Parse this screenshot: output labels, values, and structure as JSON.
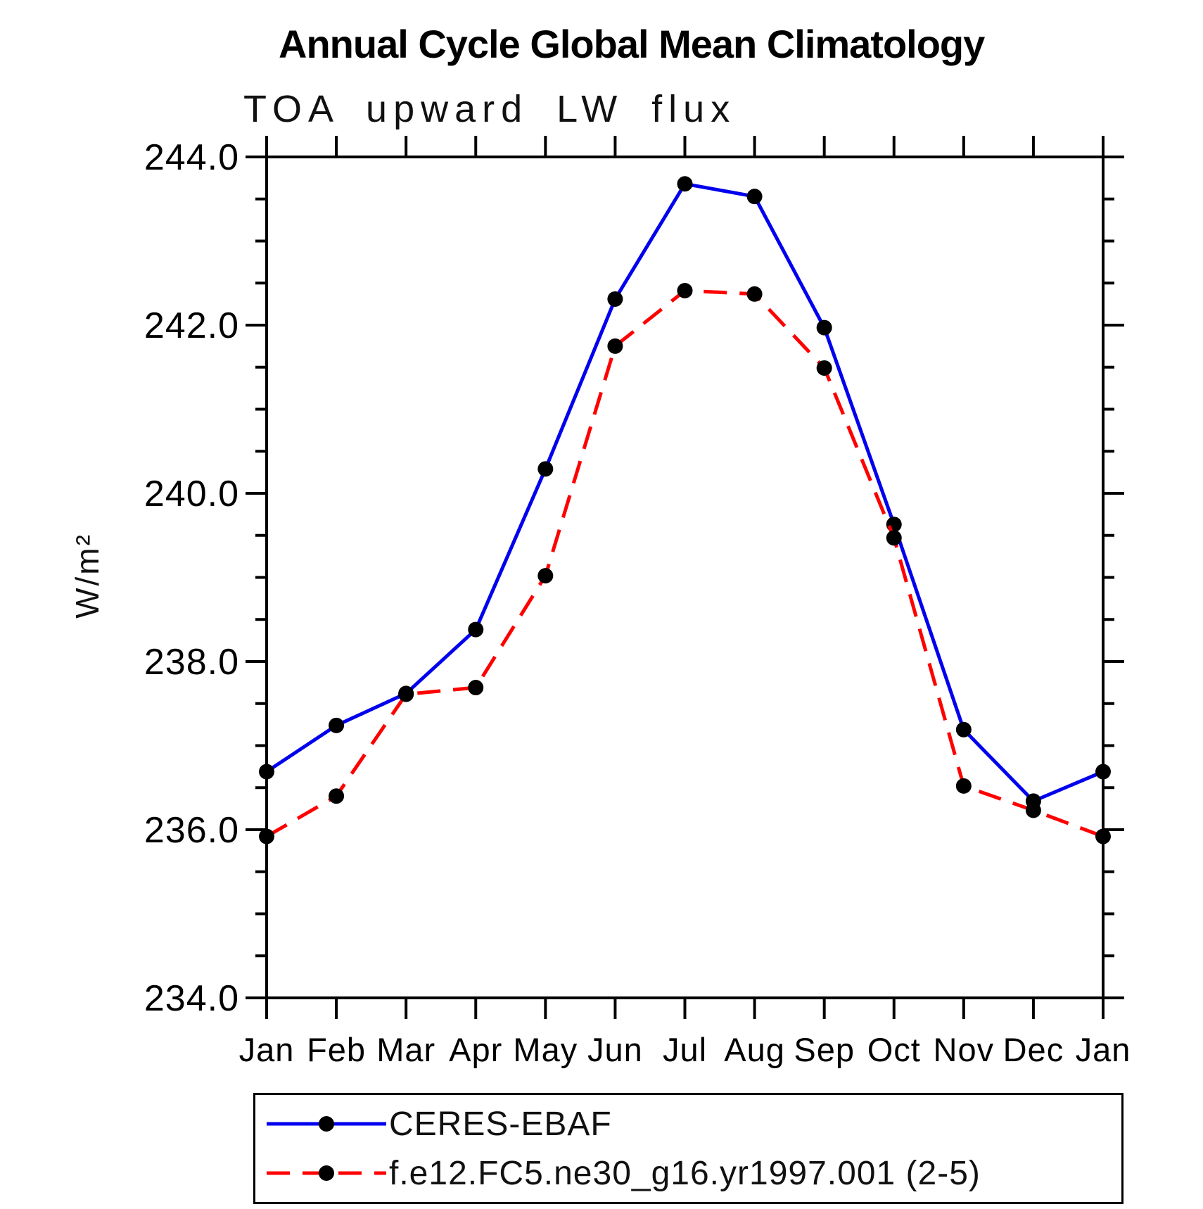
{
  "header": {
    "title": "Annual Cycle Global Mean Climatology",
    "subtitle": "TOA upward LW flux"
  },
  "chart_data": {
    "type": "line",
    "title": "Annual Cycle Global Mean Climatology",
    "subtitle": "TOA upward LW flux",
    "xlabel": "",
    "ylabel": "W/m²",
    "ylim": [
      234.0,
      244.0
    ],
    "y_major_step": 2.0,
    "y_minor_step": 0.5,
    "y_tick_format_decimals": 1,
    "grid": false,
    "legend_position": "bottom",
    "frame_color": "#000000",
    "marker_color": "#000000",
    "categories": [
      "Jan",
      "Feb",
      "Mar",
      "Apr",
      "May",
      "Jun",
      "Jul",
      "Aug",
      "Sep",
      "Oct",
      "Nov",
      "Dec",
      "Jan"
    ],
    "series": [
      {
        "name": "CERES-EBAF",
        "color": "#0000ee",
        "line_style": "solid",
        "marker": "circle",
        "values": [
          236.69,
          237.24,
          237.62,
          238.38,
          240.29,
          242.31,
          243.68,
          243.53,
          241.97,
          239.63,
          237.19,
          236.34,
          236.69
        ]
      },
      {
        "name": "f.e12.FC5.ne30_g16.yr1997.001 (2-5)",
        "color": "#ff0000",
        "line_style": "dashed",
        "marker": "circle",
        "values": [
          235.92,
          236.4,
          237.61,
          237.69,
          239.02,
          241.75,
          242.41,
          242.37,
          241.49,
          239.47,
          236.52,
          236.23,
          235.92
        ]
      }
    ]
  }
}
